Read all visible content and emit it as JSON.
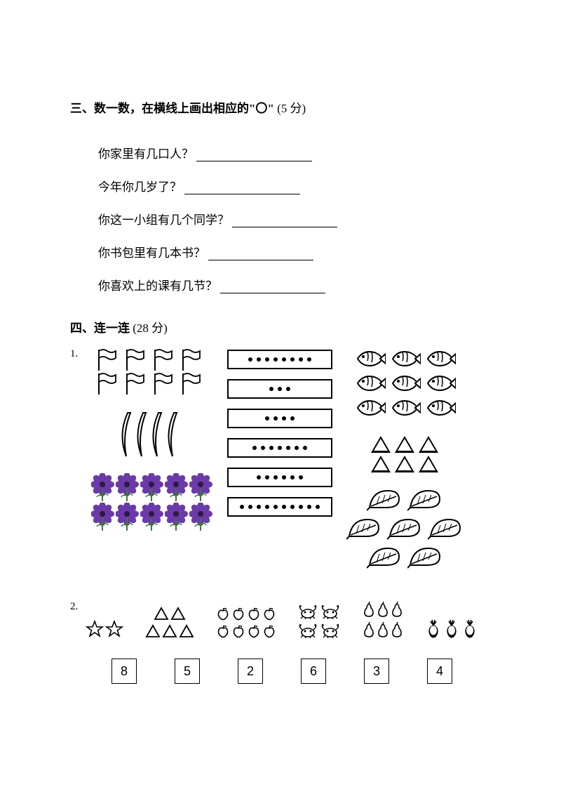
{
  "section3": {
    "header_bold": "三、数一数，在横线上画出相应的\"〇\"",
    "header_points": "(5 分)",
    "questions": [
      {
        "text": "你家里有几口人？",
        "blank_width": 165
      },
      {
        "text": "今年你几岁了？",
        "blank_width": 165
      },
      {
        "text": "你这一小组有几个同学？",
        "blank_width": 150
      },
      {
        "text": "你书包里有几本书？",
        "blank_width": 150
      },
      {
        "text": "你喜欢上的课有几节？",
        "blank_width": 150
      }
    ]
  },
  "section4": {
    "header_bold": "四、连一连",
    "header_points": "(28 分)",
    "problem1": {
      "num": "1.",
      "left": {
        "flags": {
          "rows": 2,
          "per_row": 4
        },
        "bananas": {
          "count": 4
        },
        "flowers": {
          "rows": 2,
          "per_row": 5,
          "petal_color": "#6a3aa8",
          "center_color": "#2b1a45",
          "stem_color": "#3a7d2f"
        }
      },
      "middle": {
        "dot_counts": [
          8,
          3,
          4,
          7,
          6,
          10
        ]
      },
      "right": {
        "fish": {
          "rows": 3,
          "per_row": 3
        },
        "triangles": {
          "rows": 2,
          "per_row": 3
        },
        "leaves": {
          "rows": 3,
          "counts": [
            2,
            3,
            2
          ]
        }
      }
    },
    "problem2": {
      "num": "2.",
      "items": [
        {
          "type": "star",
          "count": 2
        },
        {
          "type": "triangle",
          "count": 5
        },
        {
          "type": "apple",
          "count": 8
        },
        {
          "type": "crab",
          "count": 4
        },
        {
          "type": "pear",
          "count": 6
        },
        {
          "type": "radish",
          "count": 3
        }
      ],
      "boxes": [
        "8",
        "5",
        "2",
        "6",
        "3",
        "4"
      ]
    }
  },
  "colors": {
    "text": "#000000",
    "background": "#ffffff",
    "flower_petal": "#6a3aa8",
    "flower_center": "#2b1a45",
    "flower_stem": "#3a7d2f"
  }
}
